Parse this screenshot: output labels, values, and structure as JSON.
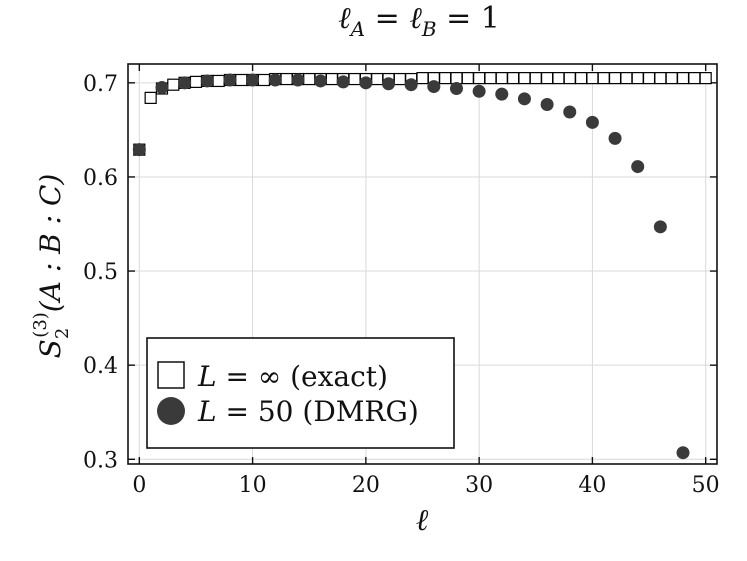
{
  "chart_data": {
    "type": "scatter",
    "title": "ℓ_A = ℓ_B = 1",
    "title_parts": {
      "l1": "ℓ",
      "s1": "A",
      "eq1": " = ",
      "l2": "ℓ",
      "s2": "B",
      "eq2": " = 1"
    },
    "xlabel": "ℓ",
    "ylabel": "S_2^(3)(A : B : C)",
    "ylabel_parts": {
      "S": "S",
      "sub": "2",
      "sup": "(3)",
      "args": "(A : B : C)"
    },
    "xlim": [
      -1,
      51
    ],
    "ylim": [
      0.295,
      0.72
    ],
    "xticks": [
      0,
      10,
      20,
      30,
      40,
      50
    ],
    "yticks": [
      0.3,
      0.4,
      0.5,
      0.6,
      0.7
    ],
    "xtick_labels": [
      "0",
      "10",
      "20",
      "30",
      "40",
      "50"
    ],
    "ytick_labels": [
      "0.3",
      "0.4",
      "0.5",
      "0.6",
      "0.7"
    ],
    "grid": true,
    "legend_position": "bottom-left",
    "series": [
      {
        "name": "L = ∞ (exact)",
        "legend_parts": {
          "L": "L",
          "eq": " = ∞ ",
          "note": "(exact)"
        },
        "marker": "open-square",
        "color": "#000000",
        "x": [
          0,
          1,
          2,
          3,
          4,
          5,
          6,
          7,
          8,
          9,
          10,
          11,
          12,
          13,
          14,
          15,
          16,
          17,
          18,
          19,
          20,
          21,
          22,
          23,
          24,
          25,
          26,
          27,
          28,
          29,
          30,
          31,
          32,
          33,
          34,
          35,
          36,
          37,
          38,
          39,
          40,
          41,
          42,
          43,
          44,
          45,
          46,
          47,
          48,
          49,
          50
        ],
        "y": [
          0.629,
          0.684,
          0.694,
          0.698,
          0.7,
          0.701,
          0.702,
          0.702,
          0.703,
          0.703,
          0.703,
          0.703,
          0.704,
          0.704,
          0.704,
          0.704,
          0.704,
          0.704,
          0.704,
          0.704,
          0.704,
          0.704,
          0.704,
          0.704,
          0.704,
          0.705,
          0.705,
          0.705,
          0.705,
          0.705,
          0.705,
          0.705,
          0.705,
          0.705,
          0.705,
          0.705,
          0.705,
          0.705,
          0.705,
          0.705,
          0.705,
          0.705,
          0.705,
          0.705,
          0.705,
          0.705,
          0.705,
          0.705,
          0.705,
          0.705,
          0.705
        ]
      },
      {
        "name": "L = 50 (DMRG)",
        "legend_parts": {
          "L": "L",
          "eq": " = 50 ",
          "note": "(DMRG)"
        },
        "marker": "filled-circle",
        "color": "#3a3a3a",
        "x": [
          0,
          2,
          4,
          6,
          8,
          10,
          12,
          14,
          16,
          18,
          20,
          22,
          24,
          26,
          28,
          30,
          32,
          34,
          36,
          38,
          40,
          42,
          44,
          46,
          48
        ],
        "y": [
          0.629,
          0.695,
          0.7,
          0.702,
          0.703,
          0.703,
          0.703,
          0.703,
          0.702,
          0.701,
          0.7,
          0.699,
          0.698,
          0.696,
          0.694,
          0.691,
          0.688,
          0.683,
          0.677,
          0.669,
          0.658,
          0.641,
          0.611,
          0.547,
          0.307
        ]
      }
    ]
  }
}
